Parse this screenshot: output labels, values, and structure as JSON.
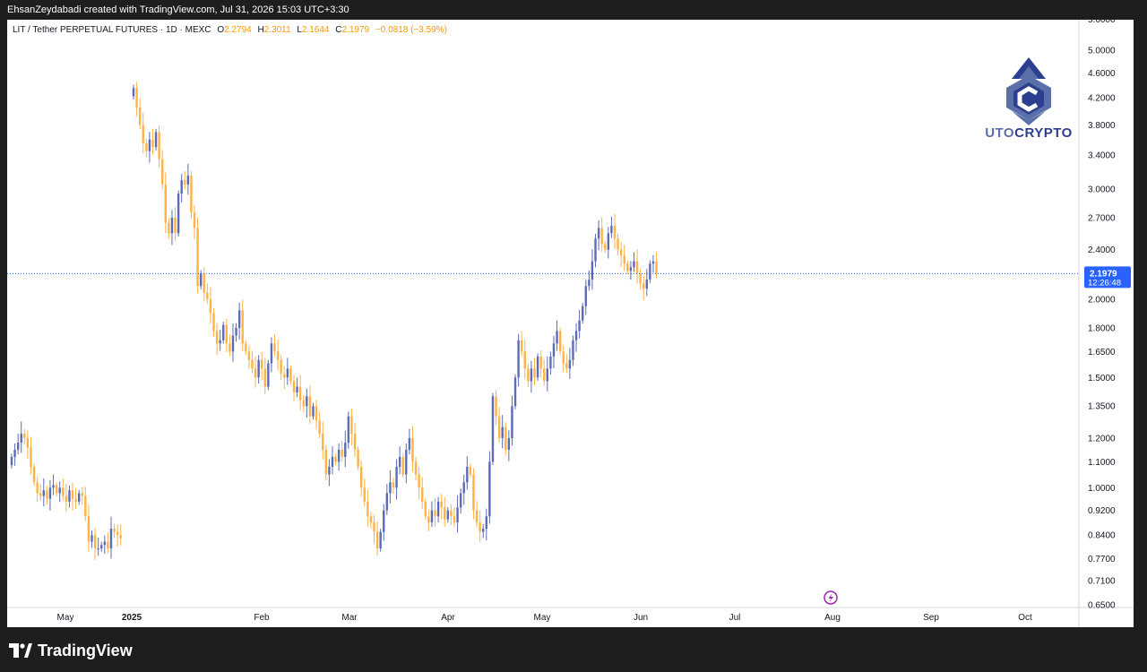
{
  "header": {
    "attribution": "EhsanZeydabadi created with TradingView.com, Jul 31, 2026 15:03 UTC+3:30"
  },
  "symbol": {
    "name": "LIT / Tether PERPETUAL FUTURES · 1D · MEXC",
    "o_label": "O",
    "o_value": "2.2794",
    "h_label": "H",
    "h_value": "2.3011",
    "l_label": "L",
    "l_value": "2.1644",
    "c_label": "C",
    "c_value": "2.1979",
    "change": "−0.0818 (−3.59%)"
  },
  "logo": {
    "text_a": "UTO",
    "text_b": "CRYPTO"
  },
  "footer": {
    "brand": "TradingView"
  },
  "colors": {
    "up": "#5b6bb8",
    "down": "#ffb347",
    "price_line": "#2962ff",
    "axis_text": "#131722"
  },
  "chart_data": {
    "type": "candlestick",
    "scale": "log",
    "ylim": [
      0.65,
      5.6
    ],
    "y_ticks": [
      "5.0000",
      "4.6000",
      "4.2000",
      "3.8000",
      "3.4000",
      "3.0000",
      "2.7000",
      "2.4000",
      "2.0000",
      "1.8000",
      "1.6500",
      "1.5000",
      "1.3500",
      "1.2000",
      "1.1000",
      "1.0000",
      "0.9200",
      "0.8400",
      "0.7700",
      "0.7100",
      "0.6500"
    ],
    "x_ticks": [
      "May",
      "2025",
      "Feb",
      "Mar",
      "Apr",
      "May",
      "Jun",
      "Jul",
      "Aug",
      "Sep",
      "Oct"
    ],
    "last_price": "2.1979",
    "countdown": "12:26:48",
    "segment_1_closes": [
      1.12,
      1.15,
      1.18,
      1.22,
      1.2,
      1.16,
      1.08,
      1.02,
      0.98,
      0.97,
      0.99,
      0.96,
      1.0,
      1.01,
      0.98,
      1.0,
      0.97,
      0.95,
      0.99,
      0.96,
      0.95,
      0.98,
      0.97,
      0.9,
      0.82,
      0.84,
      0.8,
      0.8,
      0.81,
      0.82,
      0.8,
      0.86,
      0.85,
      0.84,
      0.83
    ],
    "segment_2_closes": [
      4.35,
      4.05,
      3.8,
      3.55,
      3.45,
      3.6,
      3.5,
      3.7,
      3.35,
      3.05,
      2.65,
      2.55,
      2.7,
      2.55,
      2.95,
      3.1,
      3.05,
      3.15,
      2.75,
      2.6,
      2.1,
      2.2,
      2.05,
      2.0,
      1.9,
      1.78,
      1.7,
      1.72,
      1.82,
      1.7,
      1.65,
      1.75,
      1.8,
      1.92,
      1.7,
      1.65,
      1.6,
      1.55,
      1.5,
      1.6,
      1.55,
      1.45,
      1.58,
      1.7,
      1.65,
      1.6,
      1.52,
      1.5,
      1.55,
      1.48,
      1.42,
      1.45,
      1.38,
      1.35,
      1.4,
      1.3,
      1.35,
      1.28,
      1.22,
      1.15,
      1.05,
      1.08,
      1.12,
      1.1,
      1.15,
      1.12,
      1.18,
      1.3,
      1.22,
      1.15,
      1.08,
      1.0,
      0.95,
      0.9,
      0.88,
      0.85,
      0.8,
      0.85,
      0.92,
      0.98,
      1.02,
      1.0,
      1.08,
      1.12,
      1.05,
      1.15,
      1.2,
      1.1,
      1.05,
      1.0,
      0.95,
      0.9,
      0.88,
      0.92,
      0.9,
      0.95,
      0.93,
      0.89,
      0.92,
      0.9,
      0.88,
      0.93,
      0.98,
      1.02,
      1.08,
      1.05,
      0.92,
      0.88,
      0.85,
      0.86,
      0.9,
      1.1,
      1.4,
      1.3,
      1.2,
      1.25,
      1.15,
      1.2,
      1.35,
      1.5,
      1.72,
      1.65,
      1.55,
      1.48,
      1.55,
      1.5,
      1.62,
      1.55,
      1.48,
      1.55,
      1.62,
      1.7,
      1.78,
      1.65,
      1.58,
      1.55,
      1.6,
      1.72,
      1.78,
      1.85,
      1.95,
      2.1,
      2.15,
      2.3,
      2.5,
      2.6,
      2.45,
      2.4,
      2.55,
      2.62,
      2.5,
      2.4,
      2.35,
      2.28,
      2.22,
      2.25,
      2.3,
      2.2,
      2.12,
      2.08,
      2.15,
      2.28,
      2.3,
      2.2
    ]
  }
}
